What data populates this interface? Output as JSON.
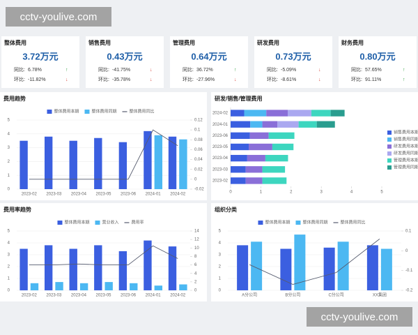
{
  "watermarks": [
    "cctv-youlive.com",
    "cctv-youlive.com"
  ],
  "kpis": [
    {
      "title": "整体费用",
      "value": "3.72万元",
      "yoy_label": "同比:",
      "yoy": "6.78%",
      "yoy_arrow": "↑",
      "mom_label": "环比:",
      "mom": "-11.82%",
      "mom_arrow": "↓"
    },
    {
      "title": "销售费用",
      "value": "0.43万元",
      "yoy_label": "同比:",
      "yoy": "-41.75%",
      "yoy_arrow": "↓",
      "mom_label": "环比:",
      "mom": "-35.78%",
      "mom_arrow": "↓"
    },
    {
      "title": "管理费用",
      "value": "0.64万元",
      "yoy_label": "同比:",
      "yoy": "36.72%",
      "yoy_arrow": "↑",
      "mom_label": "环比:",
      "mom": "-27.96%",
      "mom_arrow": "↓"
    },
    {
      "title": "研发费用",
      "value": "0.73万元",
      "yoy_label": "同比:",
      "yoy": "-5.09%",
      "yoy_arrow": "↓",
      "mom_label": "环比:",
      "mom": "-8.61%",
      "mom_arrow": "↓"
    },
    {
      "title": "财务费用",
      "value": "0.80万元",
      "yoy_label": "同比:",
      "yoy": "57.65%",
      "yoy_arrow": "↑",
      "mom_label": "环比:",
      "mom": "91.11%",
      "mom_arrow": "↑"
    }
  ],
  "chart_data": [
    {
      "type": "bar",
      "title": "费用趋势",
      "categories": [
        "2023-02",
        "2023-03",
        "2023-04",
        "2023-05",
        "2023-06",
        "2024-01",
        "2024-02"
      ],
      "series": [
        {
          "name": "整体费用本期",
          "color": "#3b5fe0",
          "values": [
            3.5,
            3.8,
            3.5,
            3.7,
            3.4,
            4.2,
            3.8
          ]
        },
        {
          "name": "整体费用同期",
          "color": "#4cb8f2",
          "values": [
            null,
            null,
            null,
            null,
            null,
            3.9,
            3.6
          ]
        },
        {
          "name": "整体费用同比",
          "color": "#555b6e",
          "type": "line",
          "axis": "y2",
          "values": [
            0,
            0,
            0,
            0,
            0,
            0.1,
            0.068
          ]
        }
      ],
      "ylim": [
        0,
        5
      ],
      "yticks": [
        0,
        1,
        2,
        3,
        4,
        5
      ],
      "y2lim": [
        -0.02,
        0.12
      ],
      "y2ticks": [
        -0.02,
        0,
        0.02,
        0.04,
        0.06,
        0.08,
        0.1,
        0.12
      ],
      "grid": true
    },
    {
      "type": "barh",
      "title": "研发/销售/管理费用",
      "stacked": true,
      "categories": [
        "2024-02",
        "2024-01",
        "2023-06",
        "2023-05",
        "2023-04",
        "2023-03",
        "2023-02"
      ],
      "series": [
        {
          "name": "销售费用本期",
          "color": "#3b5fe0",
          "values": [
            0.45,
            0.65,
            0.64,
            0.6,
            0.55,
            0.5,
            0.5
          ]
        },
        {
          "name": "销售费用同期",
          "color": "#4cb8f2",
          "values": [
            0.73,
            0.4,
            null,
            null,
            null,
            null,
            null
          ]
        },
        {
          "name": "研发费用本期",
          "color": "#8a6fd8",
          "values": [
            0.71,
            0.5,
            0.62,
            0.78,
            0.6,
            0.55,
            0.55
          ]
        },
        {
          "name": "研发费用同期",
          "color": "#aaa8f0",
          "values": [
            0.78,
            0.7,
            null,
            null,
            null,
            null,
            null
          ]
        },
        {
          "name": "管理费用本期",
          "color": "#3dd6bf",
          "values": [
            0.64,
            0.6,
            0.85,
            0.7,
            0.75,
            0.75,
            0.8
          ]
        },
        {
          "name": "管理费用同期",
          "color": "#2a9d8f",
          "values": [
            0.46,
            0.6,
            null,
            null,
            null,
            null,
            null
          ]
        }
      ],
      "xlim": [
        0,
        5
      ],
      "xticks": [
        0,
        1,
        2,
        3,
        4,
        5
      ],
      "legend": "right"
    },
    {
      "type": "bar",
      "title": "费用率趋势",
      "categories": [
        "2023-02",
        "2023-03",
        "2023-04",
        "2023-05",
        "2023-06",
        "2024-01",
        "2024-02"
      ],
      "series": [
        {
          "name": "整体费用本期",
          "color": "#3b5fe0",
          "values": [
            3.5,
            3.8,
            3.5,
            3.8,
            3.3,
            4.2,
            3.7
          ]
        },
        {
          "name": "营业收入",
          "color": "#4cb8f2",
          "values": [
            0.6,
            0.7,
            0.6,
            0.7,
            0.6,
            0.4,
            0.5
          ]
        },
        {
          "name": "费用率",
          "color": "#555b6e",
          "type": "line",
          "axis": "y2",
          "values": [
            6,
            6,
            6.2,
            6,
            6,
            10.5,
            7.5
          ]
        }
      ],
      "ylim": [
        0,
        5
      ],
      "yticks": [
        0,
        1,
        2,
        3,
        4,
        5
      ],
      "y2lim": [
        0,
        14
      ],
      "y2ticks": [
        0,
        2,
        4,
        6,
        8,
        10,
        12,
        14
      ],
      "grid": true
    },
    {
      "type": "bar",
      "title": "组织分类",
      "categories": [
        "A分公司",
        "B分公司",
        "C分公司",
        "XX集团"
      ],
      "series": [
        {
          "name": "整体费用本期",
          "color": "#3b5fe0",
          "values": [
            3.8,
            3.5,
            3.6,
            3.8
          ]
        },
        {
          "name": "整体费用同期",
          "color": "#4cb8f2",
          "values": [
            4.1,
            4.7,
            4.1,
            3.5
          ]
        },
        {
          "name": "整体费用同比",
          "color": "#555b6e",
          "type": "line",
          "axis": "y2",
          "values": [
            -0.07,
            -0.17,
            -0.11,
            0.06
          ]
        }
      ],
      "ylim": [
        0,
        5
      ],
      "yticks": [
        0,
        1,
        2,
        3,
        4,
        5
      ],
      "y2lim": [
        -0.2,
        0.1
      ],
      "y2ticks": [
        -0.2,
        -0.1,
        0,
        0.1
      ],
      "grid": true
    }
  ]
}
